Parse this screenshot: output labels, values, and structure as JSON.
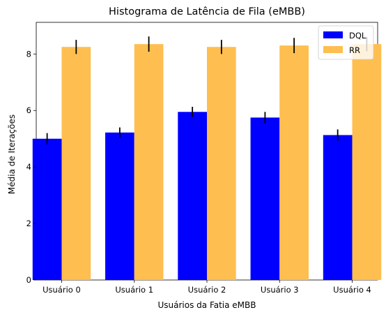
{
  "chart_data": {
    "type": "bar",
    "title": "Histograma de Latência de Fila (eMBB)",
    "xlabel": "Usuários da Fatia eMBB",
    "ylabel": "Média de Iterações",
    "categories": [
      "Usuário 0",
      "Usuário 1",
      "Usuário 2",
      "Usuário 3",
      "Usuário 4"
    ],
    "series": [
      {
        "name": "DQL",
        "color": "#0000ff",
        "values": [
          5.0,
          5.22,
          5.95,
          5.75,
          5.13
        ],
        "errors": [
          0.2,
          0.18,
          0.18,
          0.2,
          0.2
        ]
      },
      {
        "name": "RR",
        "color": "#ffbe50",
        "values": [
          8.25,
          8.35,
          8.25,
          8.3,
          8.35
        ],
        "errors": [
          0.25,
          0.27,
          0.25,
          0.27,
          0.25
        ]
      }
    ],
    "ylim": [
      0,
      9.12
    ],
    "yticks": [
      0,
      2,
      4,
      6,
      8
    ],
    "legend_position": "top-right",
    "grid": false
  }
}
